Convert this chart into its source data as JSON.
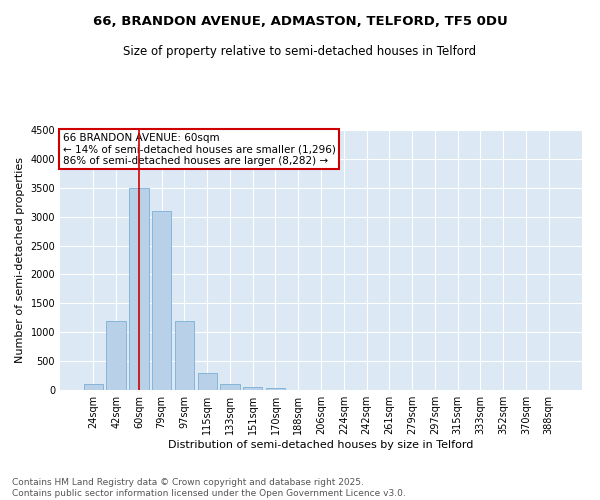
{
  "title": "66, BRANDON AVENUE, ADMASTON, TELFORD, TF5 0DU",
  "subtitle": "Size of property relative to semi-detached houses in Telford",
  "xlabel": "Distribution of semi-detached houses by size in Telford",
  "ylabel": "Number of semi-detached properties",
  "categories": [
    "24sqm",
    "42sqm",
    "60sqm",
    "79sqm",
    "97sqm",
    "115sqm",
    "133sqm",
    "151sqm",
    "170sqm",
    "188sqm",
    "206sqm",
    "224sqm",
    "242sqm",
    "261sqm",
    "279sqm",
    "297sqm",
    "315sqm",
    "333sqm",
    "352sqm",
    "370sqm",
    "388sqm"
  ],
  "values": [
    100,
    1200,
    3500,
    3100,
    1200,
    300,
    100,
    60,
    30,
    5,
    2,
    1,
    0,
    0,
    0,
    0,
    0,
    0,
    0,
    0,
    0
  ],
  "bar_color": "#b8d0e8",
  "bar_edge_color": "#7bafd4",
  "redline_index": 2,
  "annotation_title": "66 BRANDON AVENUE: 60sqm",
  "annotation_line1": "← 14% of semi-detached houses are smaller (1,296)",
  "annotation_line2": "86% of semi-detached houses are larger (8,282) →",
  "annotation_box_color": "#ffffff",
  "annotation_box_edge": "#cc0000",
  "redline_color": "#cc0000",
  "ylim": [
    0,
    4500
  ],
  "yticks": [
    0,
    500,
    1000,
    1500,
    2000,
    2500,
    3000,
    3500,
    4000,
    4500
  ],
  "background_color": "#dce9f5",
  "footer_line1": "Contains HM Land Registry data © Crown copyright and database right 2025.",
  "footer_line2": "Contains public sector information licensed under the Open Government Licence v3.0.",
  "title_fontsize": 9.5,
  "subtitle_fontsize": 8.5,
  "axis_label_fontsize": 8,
  "tick_fontsize": 7,
  "annotation_fontsize": 7.5,
  "footer_fontsize": 6.5
}
